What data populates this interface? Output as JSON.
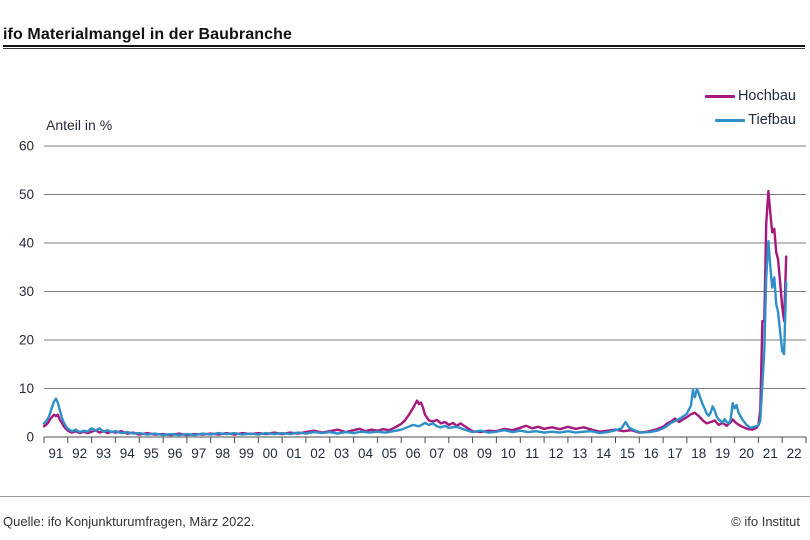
{
  "title": "ifo Materialmangel in der Baubranche",
  "footer": {
    "source": "Quelle: ifo Konjunkturumfragen, März 2022.",
    "copyright": "© ifo Institut"
  },
  "chart_data": {
    "type": "line",
    "title": "ifo Materialmangel in der Baubranche",
    "ylabel": "Anteil in %",
    "xlabel": "",
    "ylim": [
      0,
      60
    ],
    "y_ticks": [
      0,
      10,
      20,
      30,
      40,
      50,
      60
    ],
    "xlim": [
      1991,
      2023
    ],
    "x_tick_labels": [
      "91",
      "92",
      "93",
      "94",
      "95",
      "96",
      "97",
      "98",
      "99",
      "00",
      "01",
      "02",
      "03",
      "04",
      "05",
      "06",
      "07",
      "08",
      "09",
      "10",
      "11",
      "12",
      "13",
      "14",
      "15",
      "16",
      "17",
      "18",
      "19",
      "20",
      "21",
      "22"
    ],
    "x_unit": "year (monthly data, Jan 1991 - Mar 2022, x = decimal year)",
    "y_unit": "percent of firms reporting material shortage",
    "grid": "horizontal",
    "legend_position": "top-right",
    "series": [
      {
        "name": "Hochbau",
        "color": "#a6187c",
        "points": [
          [
            1991.0,
            2.2
          ],
          [
            1991.08,
            2.5
          ],
          [
            1991.17,
            2.9
          ],
          [
            1991.25,
            3.6
          ],
          [
            1991.33,
            4.1
          ],
          [
            1991.42,
            4.6
          ],
          [
            1991.5,
            4.3
          ],
          [
            1991.58,
            4.6
          ],
          [
            1991.67,
            3.5
          ],
          [
            1991.75,
            2.9
          ],
          [
            1991.83,
            2.2
          ],
          [
            1991.92,
            1.7
          ],
          [
            1992.0,
            1.3
          ],
          [
            1992.17,
            0.9
          ],
          [
            1992.33,
            1.2
          ],
          [
            1992.5,
            0.8
          ],
          [
            1992.67,
            1.1
          ],
          [
            1992.83,
            0.8
          ],
          [
            1993.0,
            1.1
          ],
          [
            1993.17,
            1.4
          ],
          [
            1993.33,
            0.9
          ],
          [
            1993.5,
            1.2
          ],
          [
            1993.67,
            0.8
          ],
          [
            1993.83,
            1.1
          ],
          [
            1994.0,
            0.9
          ],
          [
            1994.25,
            1.2
          ],
          [
            1994.5,
            0.7
          ],
          [
            1994.75,
            0.9
          ],
          [
            1995.0,
            0.5
          ],
          [
            1995.33,
            0.8
          ],
          [
            1995.67,
            0.5
          ],
          [
            1996.0,
            0.6
          ],
          [
            1996.33,
            0.4
          ],
          [
            1996.67,
            0.7
          ],
          [
            1997.0,
            0.4
          ],
          [
            1997.33,
            0.6
          ],
          [
            1997.67,
            0.5
          ],
          [
            1998.0,
            0.7
          ],
          [
            1998.33,
            0.5
          ],
          [
            1998.67,
            0.8
          ],
          [
            1999.0,
            0.5
          ],
          [
            1999.33,
            0.8
          ],
          [
            1999.67,
            0.6
          ],
          [
            2000.0,
            0.8
          ],
          [
            2000.33,
            0.6
          ],
          [
            2000.67,
            0.9
          ],
          [
            2001.0,
            0.6
          ],
          [
            2001.33,
            0.9
          ],
          [
            2001.67,
            0.7
          ],
          [
            2002.0,
            1.0
          ],
          [
            2002.33,
            1.3
          ],
          [
            2002.67,
            0.9
          ],
          [
            2003.0,
            1.2
          ],
          [
            2003.33,
            1.5
          ],
          [
            2003.67,
            1.0
          ],
          [
            2004.0,
            1.4
          ],
          [
            2004.25,
            1.7
          ],
          [
            2004.5,
            1.2
          ],
          [
            2004.75,
            1.5
          ],
          [
            2005.0,
            1.3
          ],
          [
            2005.25,
            1.6
          ],
          [
            2005.5,
            1.4
          ],
          [
            2005.75,
            2.0
          ],
          [
            2006.0,
            2.7
          ],
          [
            2006.17,
            3.5
          ],
          [
            2006.33,
            4.6
          ],
          [
            2006.5,
            6.0
          ],
          [
            2006.67,
            7.5
          ],
          [
            2006.75,
            6.8
          ],
          [
            2006.83,
            7.1
          ],
          [
            2006.92,
            6.0
          ],
          [
            2007.0,
            4.6
          ],
          [
            2007.17,
            3.4
          ],
          [
            2007.33,
            3.2
          ],
          [
            2007.5,
            3.5
          ],
          [
            2007.67,
            2.8
          ],
          [
            2007.83,
            3.1
          ],
          [
            2008.0,
            2.5
          ],
          [
            2008.17,
            2.9
          ],
          [
            2008.33,
            2.3
          ],
          [
            2008.5,
            2.8
          ],
          [
            2008.67,
            2.2
          ],
          [
            2008.83,
            1.7
          ],
          [
            2009.0,
            1.2
          ],
          [
            2009.33,
            1.0
          ],
          [
            2009.67,
            1.3
          ],
          [
            2010.0,
            1.2
          ],
          [
            2010.33,
            1.7
          ],
          [
            2010.67,
            1.4
          ],
          [
            2011.0,
            1.9
          ],
          [
            2011.25,
            2.3
          ],
          [
            2011.5,
            1.8
          ],
          [
            2011.75,
            2.1
          ],
          [
            2012.0,
            1.7
          ],
          [
            2012.33,
            2.0
          ],
          [
            2012.67,
            1.6
          ],
          [
            2013.0,
            2.1
          ],
          [
            2013.33,
            1.7
          ],
          [
            2013.67,
            2.0
          ],
          [
            2014.0,
            1.5
          ],
          [
            2014.33,
            1.1
          ],
          [
            2014.67,
            1.3
          ],
          [
            2015.0,
            1.5
          ],
          [
            2015.33,
            1.2
          ],
          [
            2015.67,
            1.4
          ],
          [
            2016.0,
            0.9
          ],
          [
            2016.33,
            1.1
          ],
          [
            2016.67,
            1.5
          ],
          [
            2017.0,
            2.1
          ],
          [
            2017.17,
            2.8
          ],
          [
            2017.33,
            3.2
          ],
          [
            2017.5,
            3.8
          ],
          [
            2017.67,
            3.1
          ],
          [
            2017.83,
            3.6
          ],
          [
            2018.0,
            4.1
          ],
          [
            2018.17,
            4.7
          ],
          [
            2018.33,
            5.0
          ],
          [
            2018.5,
            4.3
          ],
          [
            2018.67,
            3.4
          ],
          [
            2018.83,
            2.8
          ],
          [
            2019.0,
            3.1
          ],
          [
            2019.17,
            3.4
          ],
          [
            2019.33,
            2.5
          ],
          [
            2019.5,
            2.9
          ],
          [
            2019.67,
            2.3
          ],
          [
            2019.83,
            3.0
          ],
          [
            2019.92,
            3.6
          ],
          [
            2020.08,
            2.8
          ],
          [
            2020.25,
            2.3
          ],
          [
            2020.42,
            1.9
          ],
          [
            2020.58,
            1.6
          ],
          [
            2020.75,
            1.5
          ],
          [
            2020.92,
            1.9
          ],
          [
            2021.0,
            2.4
          ],
          [
            2021.08,
            5.6
          ],
          [
            2021.17,
            23.9
          ],
          [
            2021.25,
            23.9
          ],
          [
            2021.33,
            43.9
          ],
          [
            2021.42,
            50.7
          ],
          [
            2021.5,
            46.2
          ],
          [
            2021.58,
            42.2
          ],
          [
            2021.67,
            42.9
          ],
          [
            2021.75,
            38.1
          ],
          [
            2021.83,
            36.6
          ],
          [
            2021.92,
            31.5
          ],
          [
            2022.0,
            26.9
          ],
          [
            2022.08,
            23.9
          ],
          [
            2022.17,
            37.2
          ]
        ]
      },
      {
        "name": "Tiefbau",
        "color": "#2f8fc8",
        "points": [
          [
            1991.0,
            2.8
          ],
          [
            1991.08,
            3.2
          ],
          [
            1991.17,
            3.8
          ],
          [
            1991.25,
            4.8
          ],
          [
            1991.33,
            6.1
          ],
          [
            1991.42,
            7.3
          ],
          [
            1991.5,
            7.9
          ],
          [
            1991.58,
            7.1
          ],
          [
            1991.67,
            5.4
          ],
          [
            1991.75,
            4.0
          ],
          [
            1991.83,
            3.0
          ],
          [
            1991.92,
            2.2
          ],
          [
            1992.0,
            1.7
          ],
          [
            1992.17,
            1.2
          ],
          [
            1992.33,
            1.5
          ],
          [
            1992.5,
            1.0
          ],
          [
            1992.67,
            1.3
          ],
          [
            1992.83,
            1.1
          ],
          [
            1993.0,
            1.8
          ],
          [
            1993.17,
            1.3
          ],
          [
            1993.33,
            1.8
          ],
          [
            1993.5,
            1.1
          ],
          [
            1993.67,
            1.4
          ],
          [
            1993.83,
            1.0
          ],
          [
            1994.0,
            1.2
          ],
          [
            1994.25,
            0.8
          ],
          [
            1994.5,
            1.0
          ],
          [
            1994.75,
            0.7
          ],
          [
            1995.0,
            0.8
          ],
          [
            1995.33,
            0.5
          ],
          [
            1995.67,
            0.7
          ],
          [
            1996.0,
            0.4
          ],
          [
            1996.33,
            0.6
          ],
          [
            1996.67,
            0.4
          ],
          [
            1997.0,
            0.6
          ],
          [
            1997.33,
            0.4
          ],
          [
            1997.67,
            0.7
          ],
          [
            1998.0,
            0.5
          ],
          [
            1998.33,
            0.8
          ],
          [
            1998.67,
            0.6
          ],
          [
            1999.0,
            0.8
          ],
          [
            1999.33,
            0.5
          ],
          [
            1999.67,
            0.7
          ],
          [
            2000.0,
            0.5
          ],
          [
            2000.33,
            0.8
          ],
          [
            2000.67,
            0.6
          ],
          [
            2001.0,
            0.8
          ],
          [
            2001.33,
            0.6
          ],
          [
            2001.67,
            0.9
          ],
          [
            2002.0,
            0.7
          ],
          [
            2002.33,
            1.0
          ],
          [
            2002.67,
            0.8
          ],
          [
            2003.0,
            1.0
          ],
          [
            2003.33,
            0.7
          ],
          [
            2003.67,
            1.0
          ],
          [
            2004.0,
            0.8
          ],
          [
            2004.33,
            1.1
          ],
          [
            2004.67,
            0.9
          ],
          [
            2005.0,
            1.1
          ],
          [
            2005.33,
            0.9
          ],
          [
            2005.67,
            1.2
          ],
          [
            2006.0,
            1.5
          ],
          [
            2006.25,
            2.0
          ],
          [
            2006.5,
            2.5
          ],
          [
            2006.75,
            2.2
          ],
          [
            2007.0,
            2.9
          ],
          [
            2007.17,
            2.5
          ],
          [
            2007.33,
            2.8
          ],
          [
            2007.5,
            2.2
          ],
          [
            2007.67,
            2.0
          ],
          [
            2007.83,
            2.3
          ],
          [
            2008.0,
            1.9
          ],
          [
            2008.33,
            2.1
          ],
          [
            2008.67,
            1.5
          ],
          [
            2009.0,
            1.0
          ],
          [
            2009.33,
            1.3
          ],
          [
            2009.67,
            0.9
          ],
          [
            2010.0,
            1.1
          ],
          [
            2010.33,
            1.4
          ],
          [
            2010.67,
            1.0
          ],
          [
            2011.0,
            1.3
          ],
          [
            2011.33,
            1.0
          ],
          [
            2011.67,
            1.2
          ],
          [
            2012.0,
            0.9
          ],
          [
            2012.33,
            1.1
          ],
          [
            2012.67,
            0.9
          ],
          [
            2013.0,
            1.2
          ],
          [
            2013.33,
            0.9
          ],
          [
            2013.67,
            1.1
          ],
          [
            2014.0,
            1.2
          ],
          [
            2014.33,
            0.8
          ],
          [
            2014.67,
            1.0
          ],
          [
            2015.0,
            1.4
          ],
          [
            2015.25,
            1.8
          ],
          [
            2015.42,
            3.1
          ],
          [
            2015.58,
            1.9
          ],
          [
            2015.83,
            1.3
          ],
          [
            2016.08,
            0.9
          ],
          [
            2016.42,
            1.0
          ],
          [
            2016.75,
            1.3
          ],
          [
            2017.0,
            1.8
          ],
          [
            2017.17,
            2.3
          ],
          [
            2017.33,
            2.9
          ],
          [
            2017.5,
            3.3
          ],
          [
            2017.67,
            3.7
          ],
          [
            2017.83,
            4.2
          ],
          [
            2018.0,
            4.8
          ],
          [
            2018.08,
            5.6
          ],
          [
            2018.17,
            6.5
          ],
          [
            2018.25,
            9.7
          ],
          [
            2018.33,
            8.2
          ],
          [
            2018.42,
            9.9
          ],
          [
            2018.5,
            9.0
          ],
          [
            2018.58,
            7.8
          ],
          [
            2018.67,
            6.6
          ],
          [
            2018.75,
            5.8
          ],
          [
            2018.83,
            4.8
          ],
          [
            2018.92,
            4.4
          ],
          [
            2019.0,
            5.1
          ],
          [
            2019.08,
            6.3
          ],
          [
            2019.17,
            5.4
          ],
          [
            2019.25,
            4.2
          ],
          [
            2019.33,
            3.6
          ],
          [
            2019.5,
            3.0
          ],
          [
            2019.58,
            3.7
          ],
          [
            2019.67,
            3.1
          ],
          [
            2019.75,
            2.8
          ],
          [
            2019.83,
            3.4
          ],
          [
            2019.92,
            7.0
          ],
          [
            2020.0,
            5.9
          ],
          [
            2020.08,
            6.6
          ],
          [
            2020.17,
            5.0
          ],
          [
            2020.33,
            3.6
          ],
          [
            2020.5,
            2.5
          ],
          [
            2020.67,
            1.9
          ],
          [
            2020.83,
            2.1
          ],
          [
            2021.0,
            2.4
          ],
          [
            2021.08,
            3.4
          ],
          [
            2021.17,
            10.9
          ],
          [
            2021.25,
            17.8
          ],
          [
            2021.33,
            32.8
          ],
          [
            2021.42,
            40.4
          ],
          [
            2021.5,
            35.2
          ],
          [
            2021.58,
            30.8
          ],
          [
            2021.67,
            32.9
          ],
          [
            2021.75,
            27.4
          ],
          [
            2021.83,
            25.8
          ],
          [
            2021.92,
            21.4
          ],
          [
            2022.0,
            17.8
          ],
          [
            2022.08,
            17.1
          ],
          [
            2022.17,
            31.9
          ]
        ]
      }
    ]
  }
}
